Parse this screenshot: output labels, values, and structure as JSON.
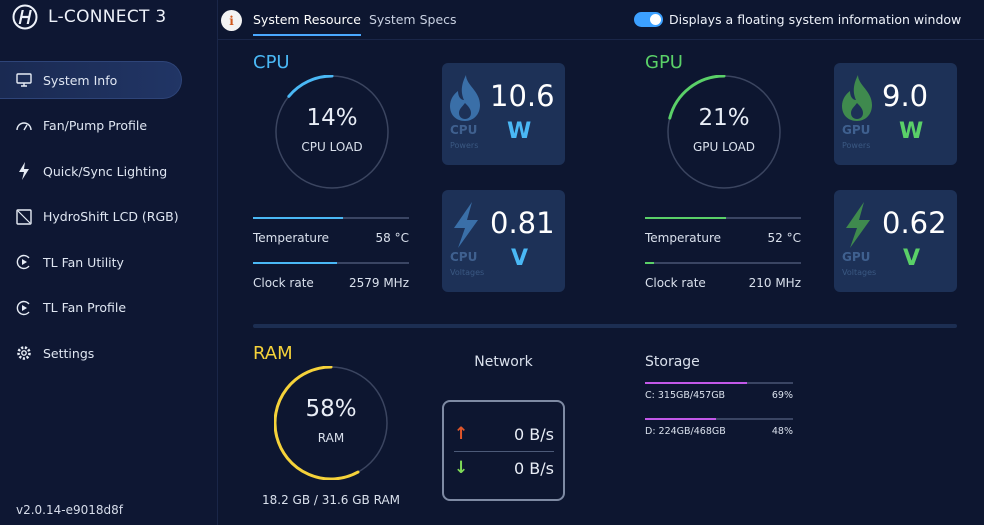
{
  "app": {
    "title": "L-CONNECT 3",
    "version": "v2.0.14-e9018d8f"
  },
  "sidebar": {
    "items": [
      {
        "label": "System Info",
        "icon": "monitor-icon",
        "active": true
      },
      {
        "label": "Fan/Pump Profile",
        "icon": "speedometer-icon",
        "active": false
      },
      {
        "label": "Quick/Sync Lighting",
        "icon": "lightning-icon",
        "active": false
      },
      {
        "label": "HydroShift LCD (RGB)",
        "icon": "lcd-icon",
        "active": false
      },
      {
        "label": "TL Fan Utility",
        "icon": "fan-utility-icon",
        "active": false
      },
      {
        "label": "TL Fan Profile",
        "icon": "fan-profile-icon",
        "active": false
      },
      {
        "label": "Settings",
        "icon": "gear-icon",
        "active": false
      }
    ]
  },
  "topbar": {
    "tabs": [
      {
        "label": "System Resource",
        "active": true
      },
      {
        "label": "System Specs",
        "active": false
      }
    ],
    "floating_window_label": "Displays a floating system information window",
    "floating_window_enabled": true
  },
  "cpu": {
    "title": "CPU",
    "load_value": "14%",
    "load_percent": 14,
    "load_label": "CPU LOAD",
    "temperature_label": "Temperature",
    "temperature_value": "58 °C",
    "temperature_fraction": 0.58,
    "clock_label": "Clock rate",
    "clock_value": "2579 MHz",
    "clock_fraction": 0.54,
    "power_value": "10.6",
    "power_name": "CPU",
    "power_sub": "Powers",
    "power_unit": "W",
    "voltage_value": "0.81",
    "voltage_name": "CPU",
    "voltage_sub": "Voltages",
    "voltage_unit": "V"
  },
  "gpu": {
    "title": "GPU",
    "load_value": "21%",
    "load_percent": 21,
    "load_label": "GPU LOAD",
    "temperature_label": "Temperature",
    "temperature_value": "52 °C",
    "temperature_fraction": 0.52,
    "clock_label": "Clock rate",
    "clock_value": "210 MHz",
    "clock_fraction": 0.06,
    "power_value": "9.0",
    "power_name": "GPU",
    "power_sub": "Powers",
    "power_unit": "W",
    "voltage_value": "0.62",
    "voltage_name": "GPU",
    "voltage_sub": "Voltages",
    "voltage_unit": "V"
  },
  "ram": {
    "title": "RAM",
    "load_value": "58%",
    "load_percent": 58,
    "load_label": "RAM",
    "usage": "18.2 GB / 31.6 GB RAM"
  },
  "network": {
    "title": "Network",
    "upload": "0 B/s",
    "download": "0 B/s"
  },
  "storage": {
    "title": "Storage",
    "drives": [
      {
        "label": "C: 315GB/457GB",
        "percent_label": "69%",
        "percent": 69
      },
      {
        "label": "D: 224GB/468GB",
        "percent_label": "48%",
        "percent": 48
      }
    ]
  },
  "colors": {
    "cpu_accent": "#4ab8f5",
    "gpu_accent": "#5ad068",
    "ram_accent": "#f5d23a",
    "storage_accent": "#c258e8",
    "upload_arrow": "#e0562a",
    "download_arrow": "#7ed957",
    "card_bg": "#1d3157"
  }
}
